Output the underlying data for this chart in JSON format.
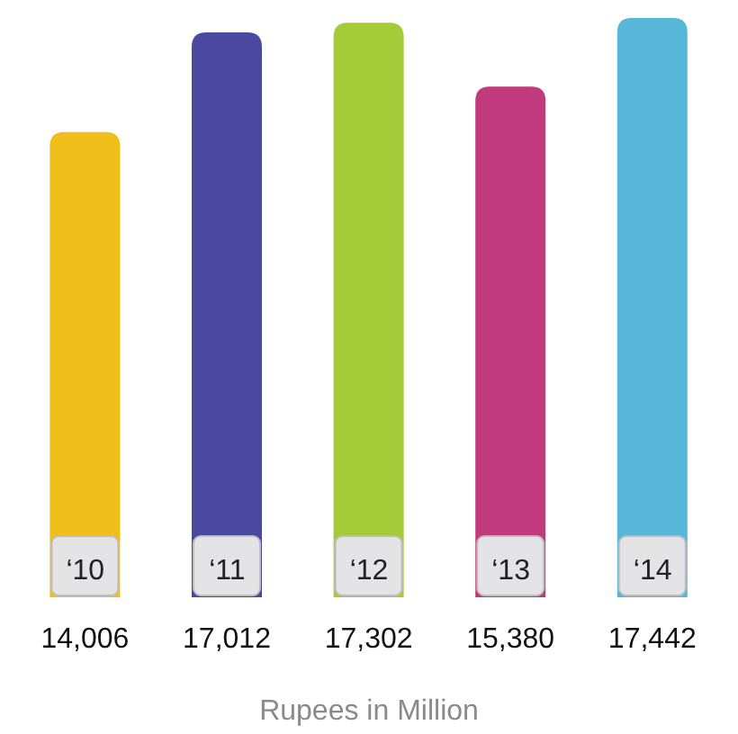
{
  "chart_data": {
    "type": "bar",
    "xlabel": "Rupees in Million",
    "categories": [
      "‘10",
      "‘11",
      "‘12",
      "‘13",
      "‘14"
    ],
    "values": [
      14006,
      17012,
      17302,
      15380,
      17442
    ],
    "colors": [
      "#efbf1c",
      "#4a48a0",
      "#a3cc38",
      "#c23a7e",
      "#58b6d8"
    ],
    "value_labels": [
      "14,006",
      "17,012",
      "17,302",
      "15,380",
      "17,442"
    ]
  }
}
